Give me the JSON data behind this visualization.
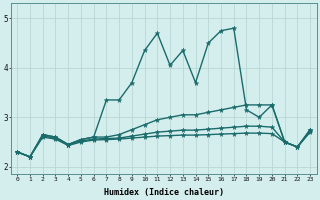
{
  "xlabel": "Humidex (Indice chaleur)",
  "ylabel": "",
  "bg_color": "#d4eeed",
  "grid_color": "#b8d8d5",
  "line_color": "#1a6b6b",
  "x_ticks": [
    0,
    1,
    2,
    3,
    4,
    5,
    6,
    7,
    8,
    9,
    10,
    11,
    12,
    13,
    14,
    15,
    16,
    17,
    18,
    19,
    20,
    21,
    22,
    23
  ],
  "y_ticks": [
    2,
    3,
    4,
    5
  ],
  "ylim": [
    1.85,
    5.3
  ],
  "xlim": [
    -0.5,
    23.5
  ],
  "series": [
    [
      2.3,
      2.2,
      2.65,
      2.6,
      2.45,
      2.55,
      2.6,
      3.35,
      3.35,
      3.7,
      4.35,
      4.7,
      4.05,
      4.35,
      3.7,
      4.5,
      4.75,
      4.8,
      3.15,
      3.0,
      3.25,
      2.5,
      2.4,
      2.75
    ],
    [
      2.3,
      2.2,
      2.65,
      2.6,
      2.45,
      2.55,
      2.6,
      2.6,
      2.65,
      2.75,
      2.85,
      2.95,
      3.0,
      3.05,
      3.05,
      3.1,
      3.15,
      3.2,
      3.25,
      3.25,
      3.25,
      2.5,
      2.4,
      2.75
    ],
    [
      2.3,
      2.2,
      2.62,
      2.58,
      2.45,
      2.52,
      2.56,
      2.57,
      2.58,
      2.62,
      2.66,
      2.7,
      2.72,
      2.74,
      2.74,
      2.76,
      2.78,
      2.8,
      2.82,
      2.82,
      2.8,
      2.5,
      2.4,
      2.72
    ],
    [
      2.3,
      2.2,
      2.6,
      2.56,
      2.43,
      2.5,
      2.54,
      2.55,
      2.56,
      2.58,
      2.6,
      2.62,
      2.63,
      2.64,
      2.64,
      2.65,
      2.66,
      2.67,
      2.68,
      2.68,
      2.67,
      2.5,
      2.4,
      2.7
    ]
  ],
  "marker": "*",
  "markersize": 3.5,
  "linewidth": 1.0
}
